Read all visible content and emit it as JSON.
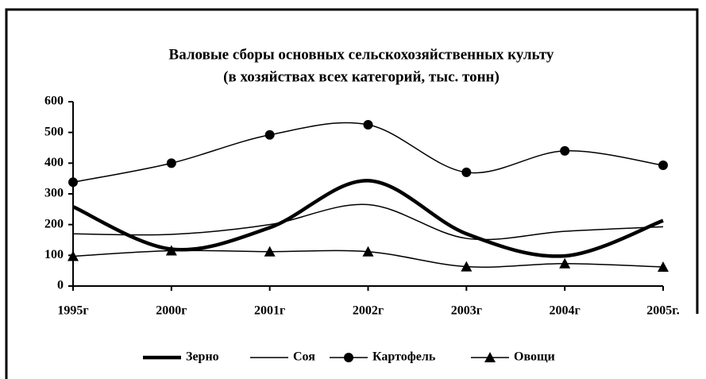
{
  "chart_data": {
    "type": "line",
    "title": "Валовые сборы основных сельскохозяйственных культу",
    "subtitle": "(в хозяйствах всех категорий, тыс. тонн)",
    "categories": [
      "1995г",
      "2000г",
      "2001г",
      "2002г",
      "2003г",
      "2004г",
      "2005г."
    ],
    "series": [
      {
        "name": "Зерно",
        "color": "#000000",
        "values": [
          258,
          120,
          190,
          343,
          170,
          98,
          213
        ]
      },
      {
        "name": "Соя",
        "color": "#000000",
        "values": [
          170,
          168,
          200,
          265,
          155,
          178,
          193
        ]
      },
      {
        "name": "Картофель",
        "color": "#000000",
        "values": [
          338,
          400,
          492,
          525,
          370,
          440,
          393
        ]
      },
      {
        "name": "Овощи",
        "color": "#000000",
        "values": [
          97,
          115,
          112,
          112,
          63,
          73,
          62
        ]
      }
    ],
    "ylim": [
      0,
      600
    ],
    "yticks": [
      0,
      100,
      200,
      300,
      400,
      500,
      600
    ],
    "grid": false,
    "legend": "bottom"
  }
}
